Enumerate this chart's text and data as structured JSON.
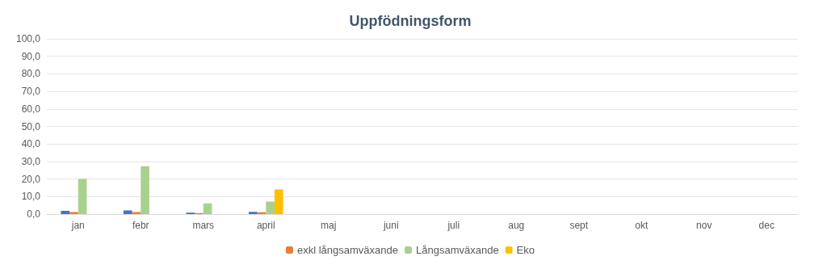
{
  "chart_data": {
    "type": "bar",
    "title": "Uppfödningsform",
    "categories": [
      "jan",
      "febr",
      "mars",
      "april",
      "maj",
      "juni",
      "juli",
      "aug",
      "sept",
      "okt",
      "nov",
      "dec"
    ],
    "series": [
      {
        "color": "#4472c4",
        "values": [
          1.8,
          2.1,
          0.8,
          1.3,
          null,
          null,
          null,
          null,
          null,
          null,
          null,
          null
        ]
      },
      {
        "name": "exkl långsamväxande",
        "color": "#ed7d31",
        "values": [
          1.2,
          1.2,
          0.6,
          1.0,
          null,
          null,
          null,
          null,
          null,
          null,
          null,
          null
        ]
      },
      {
        "name": "Långsamväxande",
        "color": "#a9d18e",
        "values": [
          20.0,
          27.3,
          6.1,
          7.1,
          null,
          null,
          null,
          null,
          null,
          null,
          null,
          null
        ]
      },
      {
        "name": "Eko",
        "color": "#ffc000",
        "values": [
          null,
          null,
          null,
          14.1,
          null,
          null,
          null,
          null,
          null,
          null,
          null,
          null
        ]
      }
    ],
    "ylim": [
      0,
      100
    ],
    "yticks": [
      {
        "value": 0,
        "label": "0,0"
      },
      {
        "value": 10,
        "label": "10,0"
      },
      {
        "value": 20,
        "label": "20,0"
      },
      {
        "value": 30,
        "label": "30,0"
      },
      {
        "value": 40,
        "label": "40,0"
      },
      {
        "value": 50,
        "label": "50,0"
      },
      {
        "value": 60,
        "label": "60,0"
      },
      {
        "value": 70,
        "label": "70,0"
      },
      {
        "value": 80,
        "label": "80,0"
      },
      {
        "value": 90,
        "label": "90,0"
      },
      {
        "value": 100,
        "label": "100,0"
      }
    ],
    "grid": "y",
    "legend": "bottom"
  }
}
